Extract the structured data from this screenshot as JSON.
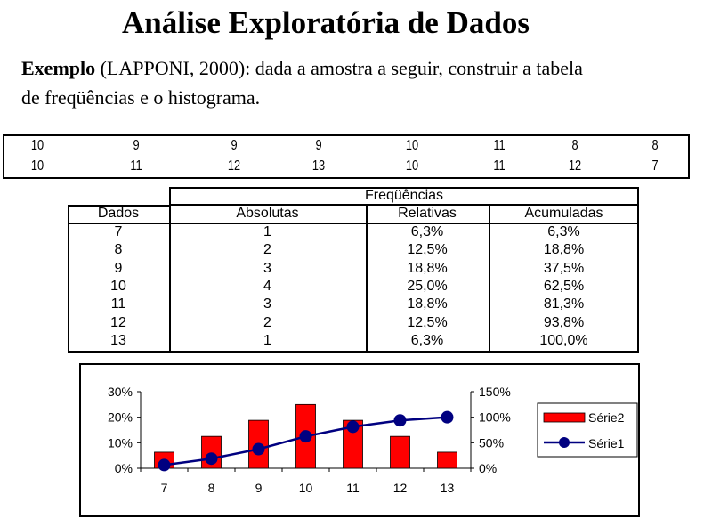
{
  "title": "Análise Exploratória de Dados",
  "intro": {
    "bold": "Exemplo",
    "line1": " (LAPPONI, 2000): dada a amostra a seguir, construir a tabela",
    "line2": "de freqüências e o histograma."
  },
  "sample": {
    "row1": [
      "10",
      "9",
      "9",
      "9",
      "10",
      "11",
      "8",
      "8"
    ],
    "row2": [
      "10",
      "11",
      "12",
      "13",
      "10",
      "11",
      "12",
      "7"
    ]
  },
  "freq_table": {
    "group_header": "Freqüências",
    "headers": [
      "Dados",
      "Absolutas",
      "Relativas",
      "Acumuladas"
    ],
    "rows": [
      [
        "7",
        "1",
        "6,3%",
        "6,3%"
      ],
      [
        "8",
        "2",
        "12,5%",
        "18,8%"
      ],
      [
        "9",
        "3",
        "18,8%",
        "37,5%"
      ],
      [
        "10",
        "4",
        "25,0%",
        "62,5%"
      ],
      [
        "11",
        "3",
        "18,8%",
        "81,3%"
      ],
      [
        "12",
        "2",
        "12,5%",
        "93,8%"
      ],
      [
        "13",
        "1",
        "6,3%",
        "100,0%"
      ]
    ]
  },
  "chart_data": {
    "type": "bar",
    "categories": [
      "7",
      "8",
      "9",
      "10",
      "11",
      "12",
      "13"
    ],
    "series": [
      {
        "name": "Série2",
        "type": "bar",
        "axis": "left",
        "values": [
          6.3,
          12.5,
          18.8,
          25.0,
          18.8,
          12.5,
          6.3
        ]
      },
      {
        "name": "Série1",
        "type": "line",
        "axis": "right",
        "values": [
          6.3,
          18.8,
          37.5,
          62.5,
          81.3,
          93.8,
          100.0
        ]
      }
    ],
    "y_left": {
      "ticks": [
        "0%",
        "10%",
        "20%",
        "30%"
      ],
      "range": [
        0,
        30
      ]
    },
    "y_right": {
      "ticks": [
        "0%",
        "50%",
        "100%",
        "150%"
      ],
      "range": [
        0,
        150
      ]
    },
    "legend_position": "right",
    "grid": false,
    "colors": {
      "bar": "#ff0000",
      "line": "#000080"
    }
  }
}
